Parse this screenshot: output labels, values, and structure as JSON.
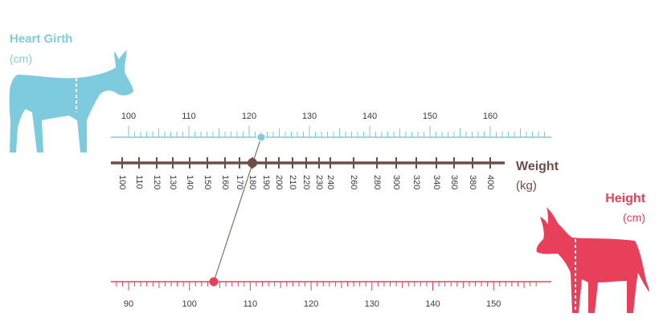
{
  "colors": {
    "girth": "#7ecbdd",
    "weight": "#6b4f46",
    "height": "#e8405b",
    "connector": "#8a6a5e"
  },
  "icons": {
    "girth_animal": "donkey-silhouette-icon",
    "height_animal": "donkey-silhouette-icon"
  },
  "girth_scale": {
    "title": "Heart Girth",
    "unit": "(cm)",
    "labels": [
      "100",
      "110",
      "120",
      "130",
      "140",
      "150",
      "160"
    ],
    "marker_value": 122
  },
  "weight_scale": {
    "title": "Weight",
    "unit": "(kg)",
    "labels": [
      "100",
      "110",
      "120",
      "130",
      "140",
      "150",
      "160",
      "170",
      "180",
      "190",
      "200",
      "210",
      "220",
      "230",
      "240",
      "260",
      "280",
      "300",
      "320",
      "340",
      "360",
      "380",
      "400"
    ],
    "marker_value": 180
  },
  "height_scale": {
    "title": "Height",
    "unit": "(cm)",
    "labels": [
      "90",
      "100",
      "110",
      "120",
      "130",
      "140",
      "150"
    ],
    "marker_value": 104
  }
}
